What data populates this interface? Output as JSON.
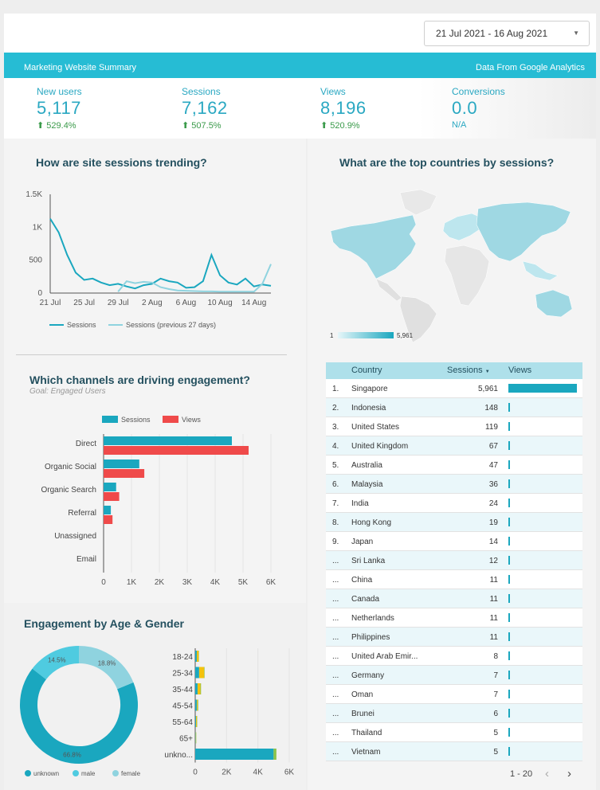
{
  "header": {
    "date_range": "21 Jul 2021 - 16 Aug 2021",
    "banner_left": "Marketing Website Summary",
    "banner_right": "Data From Google Analytics"
  },
  "kpis": [
    {
      "label": "New users",
      "value": "5,117",
      "change": "529.4%"
    },
    {
      "label": "Sessions",
      "value": "7,162",
      "change": "507.5%"
    },
    {
      "label": "Views",
      "value": "8,196",
      "change": "520.9%"
    },
    {
      "label": "Conversions",
      "value": "0.0",
      "change": "N/A"
    }
  ],
  "sessions_trend": {
    "title": "How are site sessions trending?"
  },
  "countries_map": {
    "title": "What are the top countries by sessions?",
    "legend_min": "1",
    "legend_max": "5,961"
  },
  "channels": {
    "title": "Which channels are driving engagement?",
    "subtitle": "Goal: Engaged Users"
  },
  "age_gender": {
    "title": "Engagement by Age & Gender"
  },
  "country_table": {
    "col_country": "Country",
    "col_sessions": "Sessions",
    "col_views": "Views",
    "sort_indicator": "▼",
    "max_sessions": 5961,
    "rows": [
      {
        "rank": "1.",
        "country": "Singapore",
        "sessions": "5,961",
        "value": 5961
      },
      {
        "rank": "2.",
        "country": "Indonesia",
        "sessions": "148",
        "value": 148
      },
      {
        "rank": "3.",
        "country": "United States",
        "sessions": "119",
        "value": 119
      },
      {
        "rank": "4.",
        "country": "United Kingdom",
        "sessions": "67",
        "value": 67
      },
      {
        "rank": "5.",
        "country": "Australia",
        "sessions": "47",
        "value": 47
      },
      {
        "rank": "6.",
        "country": "Malaysia",
        "sessions": "36",
        "value": 36
      },
      {
        "rank": "7.",
        "country": "India",
        "sessions": "24",
        "value": 24
      },
      {
        "rank": "8.",
        "country": "Hong Kong",
        "sessions": "19",
        "value": 19
      },
      {
        "rank": "9.",
        "country": "Japan",
        "sessions": "14",
        "value": 14
      },
      {
        "rank": "...",
        "country": "Sri Lanka",
        "sessions": "12",
        "value": 12
      },
      {
        "rank": "...",
        "country": "China",
        "sessions": "11",
        "value": 11
      },
      {
        "rank": "...",
        "country": "Canada",
        "sessions": "11",
        "value": 11
      },
      {
        "rank": "...",
        "country": "Netherlands",
        "sessions": "11",
        "value": 11
      },
      {
        "rank": "...",
        "country": "Philippines",
        "sessions": "11",
        "value": 11
      },
      {
        "rank": "...",
        "country": "United Arab Emir...",
        "sessions": "8",
        "value": 8
      },
      {
        "rank": "...",
        "country": "Germany",
        "sessions": "7",
        "value": 7
      },
      {
        "rank": "...",
        "country": "Oman",
        "sessions": "7",
        "value": 7
      },
      {
        "rank": "...",
        "country": "Brunei",
        "sessions": "6",
        "value": 6
      },
      {
        "rank": "...",
        "country": "Thailand",
        "sessions": "5",
        "value": 5
      },
      {
        "rank": "...",
        "country": "Vietnam",
        "sessions": "5",
        "value": 5
      }
    ],
    "pager": "1 - 20"
  },
  "colors": {
    "teal": "#1aa7bf",
    "teal_light": "#8fd3df",
    "red": "#ef4a4a",
    "yellow": "#f4c20d",
    "green": "#8bc34a",
    "banner": "#26bcd4"
  },
  "chart_data": [
    {
      "type": "line",
      "title": "How are site sessions trending?",
      "x_tick_labels": [
        "21 Jul",
        "25 Jul",
        "29 Jul",
        "2 Aug",
        "6 Aug",
        "10 Aug",
        "14 Aug"
      ],
      "y_tick_labels": [
        "0",
        "500",
        "1K",
        "1.5K"
      ],
      "ylim": [
        0,
        1500
      ],
      "grid": false,
      "legend_position": "bottom",
      "x": [
        "21 Jul",
        "22 Jul",
        "23 Jul",
        "24 Jul",
        "25 Jul",
        "26 Jul",
        "27 Jul",
        "28 Jul",
        "29 Jul",
        "30 Jul",
        "31 Jul",
        "1 Aug",
        "2 Aug",
        "3 Aug",
        "4 Aug",
        "5 Aug",
        "6 Aug",
        "7 Aug",
        "8 Aug",
        "9 Aug",
        "10 Aug",
        "11 Aug",
        "12 Aug",
        "13 Aug",
        "14 Aug",
        "15 Aug",
        "16 Aug"
      ],
      "series": [
        {
          "name": "Sessions",
          "values": [
            1130,
            920,
            580,
            310,
            200,
            220,
            160,
            120,
            140,
            100,
            70,
            120,
            140,
            220,
            180,
            160,
            80,
            90,
            180,
            580,
            270,
            160,
            130,
            220,
            100,
            130,
            110
          ]
        },
        {
          "name": "Sessions (previous 27 days)",
          "values": [
            null,
            null,
            null,
            null,
            null,
            null,
            null,
            null,
            20,
            180,
            150,
            170,
            160,
            90,
            60,
            40,
            35,
            30,
            25,
            25,
            20,
            20,
            20,
            20,
            20,
            140,
            440
          ]
        }
      ]
    },
    {
      "type": "bar",
      "orientation": "horizontal",
      "title": "Which channels are driving engagement?",
      "categories": [
        "Direct",
        "Organic Social",
        "Organic Search",
        "Referral",
        "Unassigned",
        "Email"
      ],
      "series": [
        {
          "name": "Sessions",
          "values": [
            4600,
            1280,
            450,
            260,
            0,
            0
          ]
        },
        {
          "name": "Views",
          "values": [
            5200,
            1460,
            560,
            320,
            0,
            0
          ]
        }
      ],
      "x_tick_labels": [
        "0",
        "1K",
        "2K",
        "3K",
        "4K",
        "5K",
        "6K"
      ],
      "xlim": [
        0,
        6000
      ],
      "legend_position": "top"
    },
    {
      "type": "pie",
      "donut": true,
      "title": "Engagement by Age & Gender",
      "labels": [
        "unknown",
        "male",
        "female"
      ],
      "values": [
        66.8,
        14.5,
        18.8
      ],
      "data_labels": [
        "66.8%",
        "14.5%",
        "18.8%"
      ],
      "legend_position": "bottom"
    },
    {
      "type": "bar",
      "orientation": "horizontal",
      "stacked": true,
      "categories": [
        "18-24",
        "25-34",
        "35-44",
        "45-54",
        "55-64",
        "65+",
        "unkno..."
      ],
      "series": [
        {
          "name": "unknown",
          "values": [
            100,
            250,
            150,
            100,
            50,
            30,
            5000
          ]
        },
        {
          "name": "yellow",
          "values": [
            120,
            320,
            180,
            50,
            60,
            30,
            0
          ]
        },
        {
          "name": "green",
          "values": [
            20,
            30,
            40,
            40,
            20,
            10,
            180
          ]
        }
      ],
      "x_tick_labels": [
        "0",
        "2K",
        "4K",
        "6K"
      ],
      "xlim": [
        0,
        6000
      ]
    }
  ]
}
